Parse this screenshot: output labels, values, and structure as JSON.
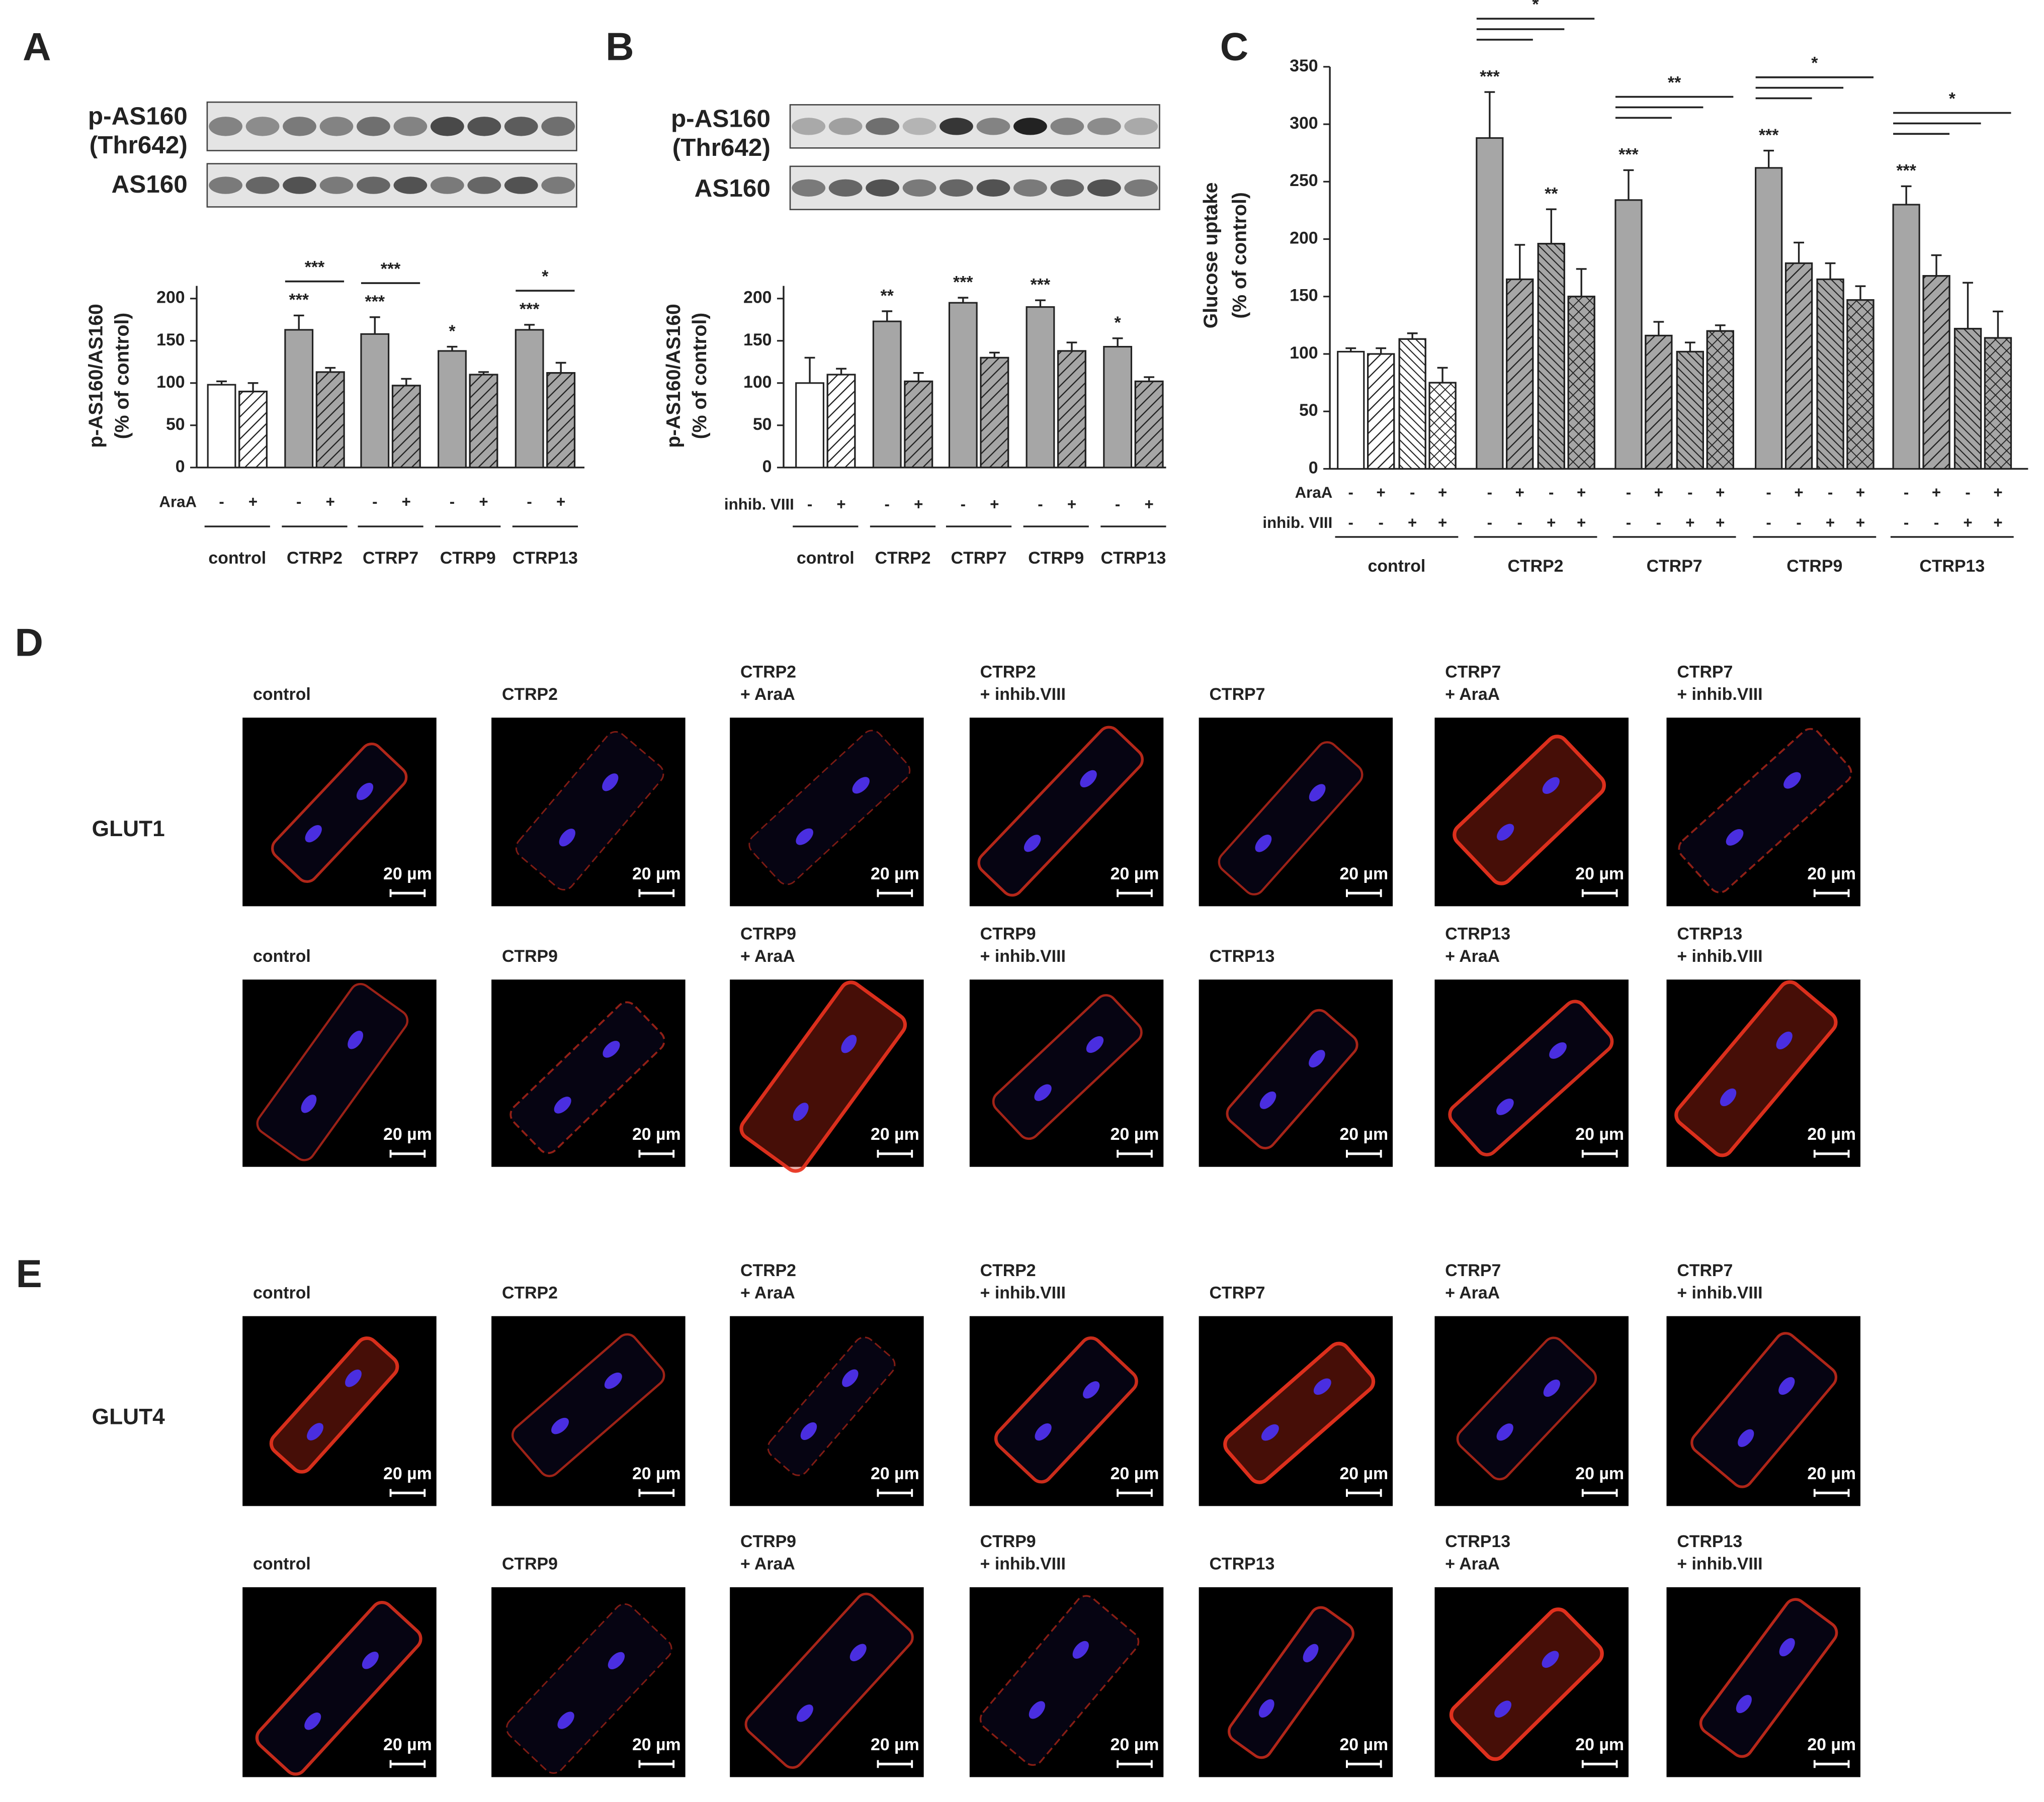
{
  "panels": [
    {
      "letter": "A",
      "blot_labels": [
        "p-AS160",
        "(Thr642)",
        "AS160"
      ]
    },
    {
      "letter": "B",
      "blot_labels": [
        "p-AS160",
        "(Thr642)",
        "AS160"
      ]
    },
    {
      "letter": "C"
    }
  ],
  "chart_data": [
    {
      "type": "bar",
      "ylabel": [
        "p-AS160/AS160",
        "(% of control)"
      ],
      "categories": [
        "control",
        "CTRP2",
        "CTRP7",
        "CTRP9",
        "CTRP13"
      ],
      "conditions": [
        {
          "name": "AraA",
          "signs": [
            "-",
            "+"
          ]
        }
      ],
      "ylim": [
        0,
        215
      ],
      "yticks": [
        0,
        50,
        100,
        150,
        200
      ],
      "series": [
        {
          "colors": [
            "#ffffff",
            "#a6a6a6",
            "#a6a6a6",
            "#a6a6a6",
            "#a6a6a6"
          ],
          "values": [
            98,
            163,
            158,
            138,
            163
          ],
          "errors": [
            4,
            17,
            20,
            5,
            6
          ],
          "stars": [
            null,
            "***",
            "***",
            "*",
            "***"
          ]
        },
        {
          "colors": [
            "#ffffff",
            "#a6a6a6",
            "#a6a6a6",
            "#a6a6a6",
            "#a6a6a6"
          ],
          "hatch": "/",
          "values": [
            90,
            113,
            97,
            110,
            112
          ],
          "errors": [
            10,
            5,
            8,
            3,
            12
          ]
        }
      ],
      "comparisons": [
        null,
        "***",
        "***",
        null,
        "*"
      ]
    },
    {
      "type": "bar",
      "ylabel": [
        "p-AS160/AS160",
        "(% of control)"
      ],
      "categories": [
        "control",
        "CTRP2",
        "CTRP7",
        "CTRP9",
        "CTRP13"
      ],
      "conditions": [
        {
          "name": "inhib. VIII",
          "signs": [
            "-",
            "+"
          ]
        }
      ],
      "ylim": [
        0,
        215
      ],
      "yticks": [
        0,
        50,
        100,
        150,
        200
      ],
      "series": [
        {
          "colors": [
            "#ffffff",
            "#a6a6a6",
            "#a6a6a6",
            "#a6a6a6",
            "#a6a6a6"
          ],
          "values": [
            100,
            173,
            195,
            190,
            143
          ],
          "errors": [
            30,
            12,
            6,
            8,
            10
          ],
          "stars": [
            null,
            "**",
            "***",
            "***",
            "*"
          ]
        },
        {
          "colors": [
            "#ffffff",
            "#a6a6a6",
            "#a6a6a6",
            "#a6a6a6",
            "#a6a6a6"
          ],
          "hatch": "/",
          "values": [
            110,
            102,
            130,
            138,
            102
          ],
          "errors": [
            7,
            10,
            6,
            10,
            5
          ]
        }
      ]
    },
    {
      "type": "bar",
      "ylabel": [
        "Glucose uptake",
        "(% of control)"
      ],
      "categories": [
        "control",
        "CTRP2",
        "CTRP7",
        "CTRP9",
        "CTRP13"
      ],
      "conditions": [
        {
          "name": "AraA",
          "signs": [
            "-",
            "+",
            "-",
            "+"
          ]
        },
        {
          "name": "inhib. VIII",
          "signs": [
            "-",
            "-",
            "+",
            "+"
          ]
        }
      ],
      "ylim": [
        0,
        350
      ],
      "yticks": [
        0,
        50,
        100,
        150,
        200,
        250,
        300,
        350
      ],
      "series": [
        {
          "colors": [
            "#ffffff",
            "#a6a6a6",
            "#a6a6a6",
            "#a6a6a6",
            "#a6a6a6"
          ],
          "values": [
            102,
            288,
            234,
            262,
            230
          ],
          "errors": [
            3,
            40,
            26,
            15,
            16
          ],
          "stars": [
            null,
            "***",
            "***",
            "***",
            "***"
          ]
        },
        {
          "colors": [
            "#ffffff",
            "#a6a6a6",
            "#a6a6a6",
            "#a6a6a6",
            "#a6a6a6"
          ],
          "hatch": "/",
          "values": [
            100,
            165,
            116,
            179,
            168
          ],
          "errors": [
            5,
            30,
            12,
            18,
            18
          ]
        },
        {
          "colors": [
            "#ffffff",
            "#a6a6a6",
            "#a6a6a6",
            "#a6a6a6",
            "#a6a6a6"
          ],
          "hatch": "\\",
          "values": [
            113,
            196,
            102,
            165,
            122
          ],
          "errors": [
            5,
            30,
            8,
            14,
            40
          ],
          "stars": [
            null,
            "**",
            null,
            null,
            null
          ]
        },
        {
          "colors": [
            "#ffffff",
            "#a6a6a6",
            "#a6a6a6",
            "#a6a6a6",
            "#a6a6a6"
          ],
          "hatch": "x",
          "values": [
            75,
            150,
            120,
            147,
            114
          ],
          "errors": [
            13,
            24,
            5,
            12,
            23
          ]
        }
      ],
      "comparisons": [
        null,
        "*",
        "**",
        "*",
        "*"
      ]
    }
  ],
  "scale_bar": "20 µm",
  "microscopy": [
    {
      "letter": "D",
      "marker": "GLUT1",
      "rows": [
        [
          [
            "control"
          ],
          [
            "CTRP2"
          ],
          [
            "CTRP2",
            "+ AraA"
          ],
          [
            "CTRP2",
            "+ inhib.VIII"
          ],
          [
            "CTRP7"
          ],
          [
            "CTRP7",
            "+ AraA"
          ],
          [
            "CTRP7",
            "+ inhib.VIII"
          ]
        ],
        [
          [
            "control"
          ],
          [
            "CTRP9"
          ],
          [
            "CTRP9",
            "+ AraA"
          ],
          [
            "CTRP9",
            "+ inhib.VIII"
          ],
          [
            "CTRP13"
          ],
          [
            "CTRP13",
            "+ AraA"
          ],
          [
            "CTRP13",
            "+ inhib.VIII"
          ]
        ]
      ]
    },
    {
      "letter": "E",
      "marker": "GLUT4",
      "rows": [
        [
          [
            "control"
          ],
          [
            "CTRP2"
          ],
          [
            "CTRP2",
            "+ AraA"
          ],
          [
            "CTRP2",
            "+ inhib.VIII"
          ],
          [
            "CTRP7"
          ],
          [
            "CTRP7",
            "+ AraA"
          ],
          [
            "CTRP7",
            "+ inhib.VIII"
          ]
        ],
        [
          [
            "control"
          ],
          [
            "CTRP9"
          ],
          [
            "CTRP9",
            "+ AraA"
          ],
          [
            "CTRP9",
            "+ inhib.VIII"
          ],
          [
            "CTRP13"
          ],
          [
            "CTRP13",
            "+ AraA"
          ],
          [
            "CTRP13",
            "+ inhib.VIII"
          ]
        ]
      ]
    }
  ]
}
